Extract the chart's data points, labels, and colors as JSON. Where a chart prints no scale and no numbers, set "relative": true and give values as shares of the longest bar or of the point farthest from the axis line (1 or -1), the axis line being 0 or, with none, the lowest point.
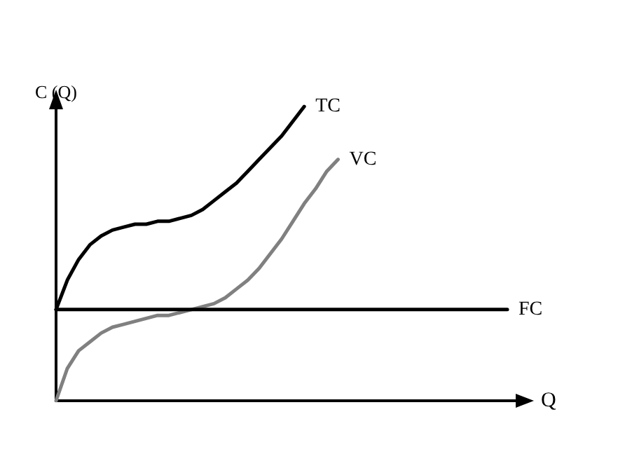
{
  "chart_data": {
    "type": "line",
    "relative": true,
    "xlabel": "Q",
    "ylabel": "C (Q)",
    "categories": [
      null,
      null,
      null,
      null,
      null,
      null,
      null,
      null,
      null,
      null,
      null,
      null,
      null,
      null,
      null,
      null,
      null,
      null,
      null,
      null,
      null,
      null,
      null,
      null,
      null,
      null,
      null,
      null,
      null,
      null,
      null,
      null,
      null,
      null,
      null,
      null,
      null,
      null,
      null,
      null,
      null
    ],
    "series": [
      {
        "name": "TC",
        "color": "#000000",
        "values": [
          0.31,
          0.41,
          0.48,
          0.53,
          0.56,
          0.58,
          0.59,
          0.6,
          0.6,
          0.61,
          0.61,
          0.62,
          0.63,
          0.65,
          0.68,
          0.71,
          0.74,
          0.78,
          0.82,
          0.86,
          0.9,
          0.95,
          1.0,
          null,
          null,
          null,
          null,
          null,
          null,
          null,
          null,
          null,
          null,
          null,
          null,
          null,
          null,
          null,
          null,
          null,
          null
        ]
      },
      {
        "name": "VC",
        "color": "#808080",
        "values": [
          0,
          0.11,
          0.17,
          0.2,
          0.23,
          0.25,
          0.26,
          0.27,
          0.28,
          0.29,
          0.29,
          0.3,
          0.31,
          0.32,
          0.33,
          0.35,
          0.38,
          0.41,
          0.45,
          0.5,
          0.55,
          0.61,
          0.67,
          0.72,
          0.78,
          0.82,
          null,
          null,
          null,
          null,
          null,
          null,
          null,
          null,
          null,
          null,
          null,
          null,
          null,
          null,
          null
        ]
      },
      {
        "name": "FC",
        "color": "#000000",
        "values": [
          0.31,
          0.31,
          0.31,
          0.31,
          0.31,
          0.31,
          0.31,
          0.31,
          0.31,
          0.31,
          0.31,
          0.31,
          0.31,
          0.31,
          0.31,
          0.31,
          0.31,
          0.31,
          0.31,
          0.31,
          0.31,
          0.31,
          0.31,
          0.31,
          0.31,
          0.31,
          0.31,
          0.31,
          0.31,
          0.31,
          0.31,
          0.31,
          0.31,
          0.31,
          0.31,
          0.31,
          0.31,
          0.31,
          0.31,
          0.31,
          0.31
        ]
      }
    ],
    "grid": false,
    "legend": false,
    "line_style": "solid"
  }
}
